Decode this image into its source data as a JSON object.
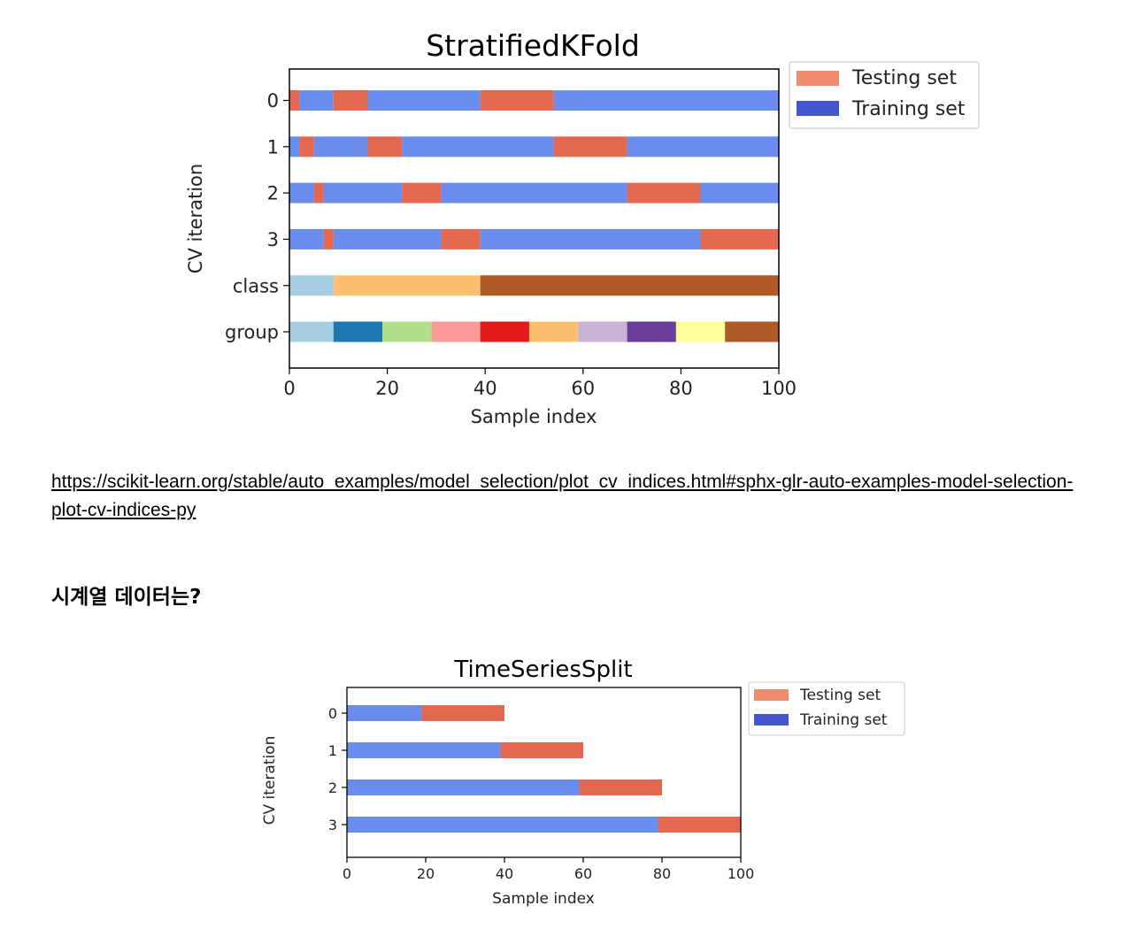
{
  "link": {
    "text": "https://scikit-learn.org/stable/auto_examples/model_selection/plot_cv_indices.html#sphx-glr-auto-examples-model-selection-plot-cv-indices-py"
  },
  "heading": "시계열 데이터는?",
  "colors": {
    "testing": "#e3684f",
    "training": "#6a8ced",
    "legend_testing": "#f08b70",
    "legend_training": "#4356ce"
  },
  "chart_data": [
    {
      "type": "bar",
      "title": "StratifiedKFold",
      "xlabel": "Sample index",
      "ylabel": "CV iteration",
      "xlim": [
        0,
        100
      ],
      "xticks": [
        "0",
        "20",
        "40",
        "60",
        "80",
        "100"
      ],
      "yticklabels": [
        "0",
        "1",
        "2",
        "3",
        "class",
        "group"
      ],
      "legend": {
        "placement": "outside-top-right",
        "entries": [
          "Testing set",
          "Training set"
        ]
      },
      "cv_rows": [
        {
          "label": "0",
          "testing_ranges": [
            [
              0,
              2
            ],
            [
              9,
              16
            ],
            [
              39,
              54
            ]
          ]
        },
        {
          "label": "1",
          "testing_ranges": [
            [
              2,
              5
            ],
            [
              16,
              23
            ],
            [
              54,
              69
            ]
          ]
        },
        {
          "label": "2",
          "testing_ranges": [
            [
              5,
              7
            ],
            [
              23,
              31
            ],
            [
              69,
              84
            ]
          ]
        },
        {
          "label": "3",
          "testing_ranges": [
            [
              7,
              9
            ],
            [
              31,
              39
            ],
            [
              84,
              100
            ]
          ]
        }
      ],
      "class_row": {
        "label": "class",
        "segments": [
          {
            "start": 0,
            "end": 9,
            "color": "#a6cee3"
          },
          {
            "start": 9,
            "end": 39,
            "color": "#fdbf6f"
          },
          {
            "start": 39,
            "end": 100,
            "color": "#b15928"
          }
        ]
      },
      "group_row": {
        "label": "group",
        "segments": [
          {
            "start": 0,
            "end": 9,
            "color": "#a6cee3"
          },
          {
            "start": 9,
            "end": 19,
            "color": "#1f78b4"
          },
          {
            "start": 19,
            "end": 29,
            "color": "#b2df8a"
          },
          {
            "start": 29,
            "end": 39,
            "color": "#fb9a99"
          },
          {
            "start": 39,
            "end": 49,
            "color": "#e31a1c"
          },
          {
            "start": 49,
            "end": 59,
            "color": "#fdbf6f"
          },
          {
            "start": 59,
            "end": 69,
            "color": "#cab2d6"
          },
          {
            "start": 69,
            "end": 79,
            "color": "#6a3d9a"
          },
          {
            "start": 79,
            "end": 89,
            "color": "#ffff99"
          },
          {
            "start": 89,
            "end": 100,
            "color": "#b15928"
          }
        ]
      }
    },
    {
      "type": "bar",
      "title": "TimeSeriesSplit",
      "xlabel": "Sample index",
      "ylabel": "CV iteration",
      "xlim": [
        0,
        100
      ],
      "xticks": [
        "0",
        "20",
        "40",
        "60",
        "80",
        "100"
      ],
      "yticklabels": [
        "0",
        "1",
        "2",
        "3"
      ],
      "legend": {
        "placement": "outside-top-right",
        "entries": [
          "Testing set",
          "Training set"
        ]
      },
      "cv_rows": [
        {
          "label": "0",
          "train_range": [
            0,
            19
          ],
          "test_range": [
            19,
            40
          ]
        },
        {
          "label": "1",
          "train_range": [
            0,
            39
          ],
          "test_range": [
            39,
            60
          ]
        },
        {
          "label": "2",
          "train_range": [
            0,
            59
          ],
          "test_range": [
            59,
            80
          ]
        },
        {
          "label": "3",
          "train_range": [
            0,
            79
          ],
          "test_range": [
            79,
            100
          ]
        }
      ]
    }
  ]
}
